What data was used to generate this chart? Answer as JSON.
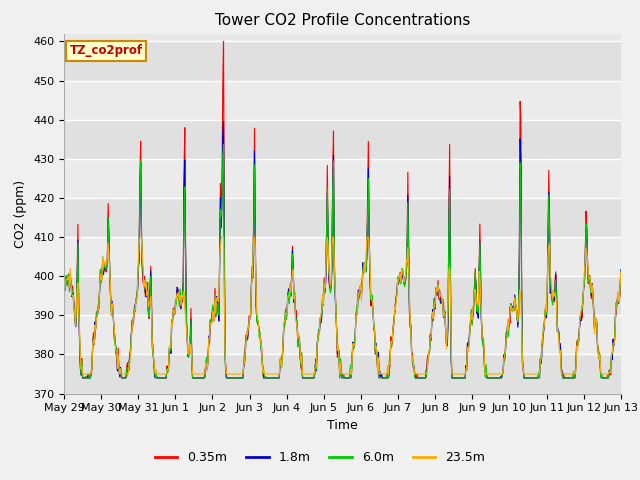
{
  "title": "Tower CO2 Profile Concentrations",
  "xlabel": "Time",
  "ylabel": "CO2 (ppm)",
  "ylim": [
    370,
    462
  ],
  "yticks": [
    370,
    380,
    390,
    400,
    410,
    420,
    430,
    440,
    450,
    460
  ],
  "background_color": "#f0f0f0",
  "plot_bg_color": "#e8e8e8",
  "series_colors": [
    "#ff0000",
    "#0000cc",
    "#00cc00",
    "#ffaa00"
  ],
  "series_labels": [
    "0.35m",
    "1.8m",
    "6.0m",
    "23.5m"
  ],
  "annotation_text": "TZ_co2prof",
  "annotation_bg": "#ffffcc",
  "annotation_border": "#cc8800",
  "tick_labels": [
    "May 29",
    "May 30",
    "May 31",
    "Jun 1",
    "Jun 2",
    "Jun 3",
    "Jun 4",
    "Jun 5",
    "Jun 6",
    "Jun 7",
    "Jun 8",
    "Jun 9",
    "Jun 10",
    "Jun 11",
    "Jun 12",
    "Jun 13"
  ],
  "n_days": 15,
  "pts_per_day": 48,
  "base_co2": 382,
  "title_fontsize": 11,
  "label_fontsize": 9,
  "tick_fontsize": 8
}
